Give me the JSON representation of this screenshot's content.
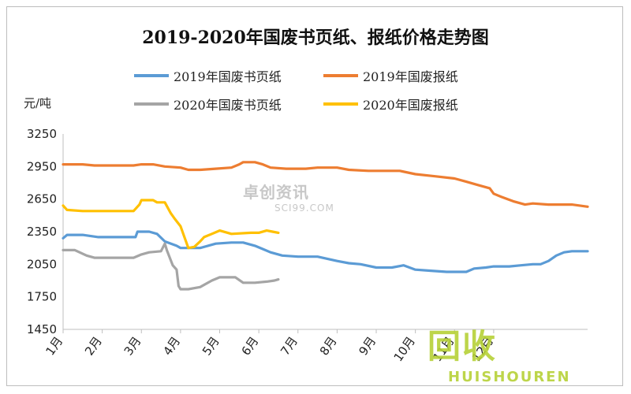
{
  "chart_data": {
    "type": "line",
    "title": "2019-2020年国废书页纸、报纸价格走势图",
    "ylabel": "元/吨",
    "xlabel": "",
    "ylim": [
      1450,
      3250
    ],
    "yticks": [
      3250,
      2950,
      2650,
      2350,
      2050,
      1750,
      1450
    ],
    "categories": [
      "1月",
      "2月",
      "3月",
      "4月",
      "5月",
      "6月",
      "7月",
      "8月",
      "9月",
      "10月",
      "11月",
      "12月"
    ],
    "grid": false,
    "legend_position": "top",
    "series": [
      {
        "name": "2019年国废书页纸",
        "color": "#5b9bd5",
        "points": [
          [
            0,
            2290
          ],
          [
            0.1,
            2320
          ],
          [
            0.5,
            2320
          ],
          [
            0.9,
            2300
          ],
          [
            1.4,
            2300
          ],
          [
            1.85,
            2300
          ],
          [
            1.9,
            2350
          ],
          [
            2.2,
            2350
          ],
          [
            2.4,
            2330
          ],
          [
            2.6,
            2260
          ],
          [
            2.9,
            2220
          ],
          [
            3.0,
            2200
          ],
          [
            3.5,
            2200
          ],
          [
            3.9,
            2240
          ],
          [
            4.3,
            2250
          ],
          [
            4.6,
            2250
          ],
          [
            4.9,
            2220
          ],
          [
            5.1,
            2190
          ],
          [
            5.3,
            2160
          ],
          [
            5.6,
            2130
          ],
          [
            6.0,
            2120
          ],
          [
            6.5,
            2120
          ],
          [
            7.0,
            2080
          ],
          [
            7.3,
            2060
          ],
          [
            7.6,
            2050
          ],
          [
            8.0,
            2020
          ],
          [
            8.4,
            2020
          ],
          [
            8.7,
            2040
          ],
          [
            9.0,
            2000
          ],
          [
            9.4,
            1990
          ],
          [
            9.8,
            1980
          ],
          [
            10.0,
            1980
          ],
          [
            10.3,
            1980
          ],
          [
            10.5,
            2010
          ],
          [
            10.8,
            2020
          ],
          [
            11.0,
            2030
          ],
          [
            11.4,
            2030
          ],
          [
            11.7,
            2040
          ],
          [
            12.0,
            2050
          ],
          [
            12.2,
            2050
          ],
          [
            12.4,
            2080
          ],
          [
            12.6,
            2130
          ],
          [
            12.8,
            2160
          ],
          [
            13.0,
            2170
          ],
          [
            13.4,
            2170
          ]
        ]
      },
      {
        "name": "2019年国废报纸",
        "color": "#ed7d31",
        "points": [
          [
            0,
            2970
          ],
          [
            0.5,
            2970
          ],
          [
            0.8,
            2960
          ],
          [
            1.3,
            2960
          ],
          [
            1.8,
            2960
          ],
          [
            2.0,
            2970
          ],
          [
            2.3,
            2970
          ],
          [
            2.6,
            2950
          ],
          [
            3.0,
            2940
          ],
          [
            3.2,
            2920
          ],
          [
            3.5,
            2920
          ],
          [
            3.9,
            2930
          ],
          [
            4.3,
            2940
          ],
          [
            4.5,
            2970
          ],
          [
            4.6,
            2990
          ],
          [
            4.9,
            2990
          ],
          [
            5.1,
            2970
          ],
          [
            5.3,
            2940
          ],
          [
            5.7,
            2930
          ],
          [
            6.2,
            2930
          ],
          [
            6.5,
            2940
          ],
          [
            7.0,
            2940
          ],
          [
            7.3,
            2920
          ],
          [
            7.8,
            2910
          ],
          [
            8.2,
            2910
          ],
          [
            8.6,
            2910
          ],
          [
            9.0,
            2880
          ],
          [
            9.5,
            2860
          ],
          [
            10.0,
            2840
          ],
          [
            10.3,
            2810
          ],
          [
            10.6,
            2780
          ],
          [
            10.9,
            2750
          ],
          [
            11.0,
            2700
          ],
          [
            11.2,
            2670
          ],
          [
            11.5,
            2630
          ],
          [
            11.8,
            2600
          ],
          [
            12.0,
            2610
          ],
          [
            12.4,
            2600
          ],
          [
            13.0,
            2600
          ],
          [
            13.2,
            2590
          ],
          [
            13.4,
            2580
          ]
        ]
      },
      {
        "name": "2020年国废书页纸",
        "color": "#a5a5a5",
        "points": [
          [
            0,
            2180
          ],
          [
            0.3,
            2180
          ],
          [
            0.6,
            2130
          ],
          [
            0.8,
            2110
          ],
          [
            1.3,
            2110
          ],
          [
            1.8,
            2110
          ],
          [
            2.0,
            2140
          ],
          [
            2.2,
            2160
          ],
          [
            2.5,
            2170
          ],
          [
            2.6,
            2240
          ],
          [
            2.65,
            2180
          ],
          [
            2.8,
            2040
          ],
          [
            2.9,
            2000
          ],
          [
            2.95,
            1850
          ],
          [
            3.0,
            1820
          ],
          [
            3.2,
            1820
          ],
          [
            3.5,
            1840
          ],
          [
            3.8,
            1900
          ],
          [
            4.0,
            1930
          ],
          [
            4.4,
            1930
          ],
          [
            4.6,
            1880
          ],
          [
            4.9,
            1880
          ],
          [
            5.2,
            1890
          ],
          [
            5.4,
            1900
          ],
          [
            5.5,
            1910
          ]
        ]
      },
      {
        "name": "2020年国废报纸",
        "color": "#ffc000",
        "points": [
          [
            0,
            2590
          ],
          [
            0.1,
            2550
          ],
          [
            0.5,
            2540
          ],
          [
            1.0,
            2540
          ],
          [
            1.5,
            2540
          ],
          [
            1.8,
            2540
          ],
          [
            1.95,
            2600
          ],
          [
            2.0,
            2640
          ],
          [
            2.3,
            2640
          ],
          [
            2.4,
            2620
          ],
          [
            2.6,
            2620
          ],
          [
            2.75,
            2520
          ],
          [
            2.85,
            2470
          ],
          [
            3.0,
            2400
          ],
          [
            3.1,
            2300
          ],
          [
            3.2,
            2200
          ],
          [
            3.35,
            2210
          ],
          [
            3.5,
            2260
          ],
          [
            3.6,
            2300
          ],
          [
            3.8,
            2330
          ],
          [
            4.0,
            2360
          ],
          [
            4.3,
            2330
          ],
          [
            4.8,
            2340
          ],
          [
            5.0,
            2340
          ],
          [
            5.2,
            2360
          ],
          [
            5.35,
            2350
          ],
          [
            5.5,
            2340
          ]
        ]
      }
    ]
  },
  "watermark": {
    "text": "卓创资讯",
    "sub": "SCI99.COM"
  },
  "logo": {
    "main": "回收",
    "sub": "HUISHOUREN"
  }
}
